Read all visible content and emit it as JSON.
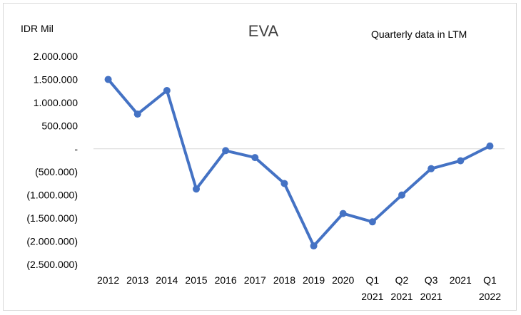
{
  "chart_data": {
    "type": "line",
    "title": "EVA",
    "ylabel": "IDR Mil",
    "annotation": "Quarterly data in LTM",
    "categories": [
      [
        "2012"
      ],
      [
        "2013"
      ],
      [
        "2014"
      ],
      [
        "2015"
      ],
      [
        "2016"
      ],
      [
        "2017"
      ],
      [
        "2018"
      ],
      [
        "2019"
      ],
      [
        "2020"
      ],
      [
        "Q1",
        "2021"
      ],
      [
        "Q2",
        "2021"
      ],
      [
        "Q3",
        "2021"
      ],
      [
        "2021"
      ],
      [
        "Q1",
        "2022"
      ]
    ],
    "series": [
      {
        "values": [
          1500000,
          750000,
          1260000,
          -870000,
          -40000,
          -190000,
          -750000,
          -2100000,
          -1400000,
          -1580000,
          -1000000,
          -430000,
          -260000,
          60000
        ]
      }
    ],
    "ylim": [
      -2500000,
      2000000
    ],
    "yticks": [
      2000000,
      1500000,
      1000000,
      500000,
      0,
      -500000,
      -1000000,
      -1500000,
      -2000000,
      -2500000
    ],
    "ytick_labels": [
      "2.000.000",
      "1.500.000",
      "1.000.000",
      "500.000",
      "-",
      "(500.000)",
      "(1.000.000)",
      "(1.500.000)",
      "(2.000.000)",
      "(2.500.000)"
    ],
    "grid": false,
    "legend": "none",
    "colors": {
      "line": "#4472c4",
      "axis": "#d9d9d9"
    }
  }
}
